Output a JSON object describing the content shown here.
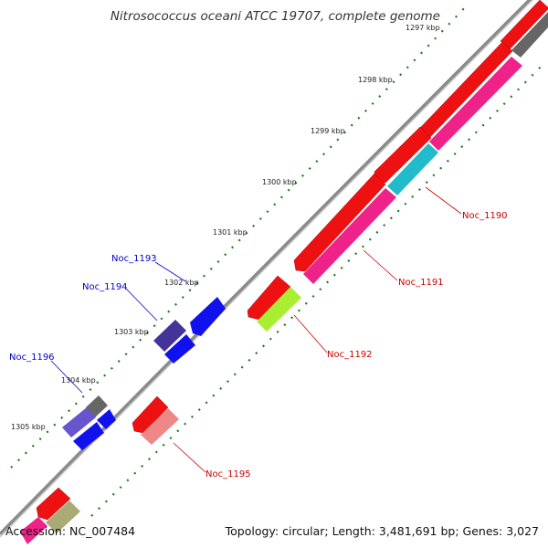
{
  "title": "Nitrosococcus oceani ATCC 19707, complete genome",
  "footer": {
    "accession": "Accession: NC_007484",
    "summary": "Topology: circular; Length: 3,481,691 bp; Genes: 3,027"
  },
  "ticks": [
    "1297 kbp",
    "1298 kbp",
    "1299 kbp",
    "1300 kbp",
    "1301 kbp",
    "1302 kbp",
    "1303 kbp",
    "1304 kbp",
    "1305 kbp"
  ],
  "gene_labels": [
    "Noc_1190",
    "Noc_1191",
    "Noc_1192",
    "Noc_1193",
    "Noc_1194",
    "Noc_1195",
    "Noc_1196"
  ],
  "colors": {
    "backbone": "#8a8a8a",
    "tick_marks": "#1a7a1a",
    "label_red": "#cc0000",
    "label_blue": "#0000cc",
    "gene_red": "#ee1111",
    "gene_pink": "#ee2288",
    "gene_cyan": "#22bbcc",
    "gene_lime": "#aaee33",
    "gene_blue": "#1111ee",
    "gene_purple": "#443399",
    "gene_violet": "#6655cc",
    "gene_grey": "#666666",
    "gene_salmon": "#ee8888",
    "gene_khaki": "#aaaa77"
  }
}
